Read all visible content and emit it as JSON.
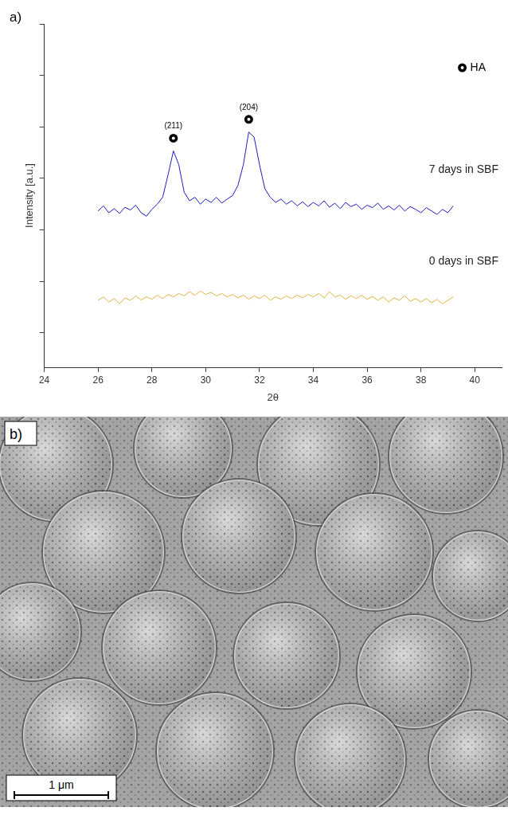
{
  "chart_data": {
    "type": "line",
    "panel_label": "a)",
    "x_label": "2θ",
    "y_label": "Intensity [a.u.]",
    "x": [
      26,
      26.2,
      26.4,
      26.6,
      26.8,
      27,
      27.2,
      27.4,
      27.6,
      27.8,
      28,
      28.2,
      28.4,
      28.6,
      28.8,
      29,
      29.2,
      29.4,
      29.6,
      29.8,
      30,
      30.2,
      30.4,
      30.6,
      30.8,
      31,
      31.2,
      31.4,
      31.6,
      31.8,
      32,
      32.2,
      32.4,
      32.6,
      32.8,
      33,
      33.2,
      33.4,
      33.6,
      33.8,
      34,
      34.2,
      34.4,
      34.6,
      34.8,
      35,
      35.2,
      35.4,
      35.6,
      35.8,
      36,
      36.2,
      36.4,
      36.6,
      36.8,
      37,
      37.2,
      37.4,
      37.6,
      37.8,
      38,
      38.2,
      38.4,
      38.6,
      38.8,
      39,
      39.2
    ],
    "series": [
      {
        "name": "7 days in SBF",
        "color": "#1c1cc8",
        "values": [
          4.55,
          4.7,
          4.5,
          4.62,
          4.48,
          4.66,
          4.58,
          4.72,
          4.5,
          4.4,
          4.6,
          4.75,
          4.95,
          5.6,
          6.3,
          5.9,
          5.1,
          4.85,
          4.95,
          4.75,
          4.9,
          4.8,
          4.95,
          4.78,
          4.9,
          5.0,
          5.3,
          5.9,
          6.85,
          6.7,
          5.9,
          5.2,
          4.95,
          4.8,
          4.9,
          4.75,
          4.85,
          4.7,
          4.82,
          4.68,
          4.8,
          4.7,
          4.85,
          4.66,
          4.78,
          4.62,
          4.8,
          4.68,
          4.75,
          4.6,
          4.72,
          4.65,
          4.78,
          4.6,
          4.7,
          4.58,
          4.72,
          4.55,
          4.68,
          4.6,
          4.5,
          4.65,
          4.55,
          4.45,
          4.6,
          4.5,
          4.7
        ],
        "peaks": [
          {
            "label": "(211)",
            "x": 28.8
          },
          {
            "label": "(204)",
            "x": 31.6
          }
        ]
      },
      {
        "name": "0 days in SBF",
        "color": "#e3b343",
        "values": [
          1.95,
          2.05,
          1.9,
          2.0,
          1.85,
          2.02,
          1.95,
          2.08,
          1.96,
          2.05,
          1.98,
          2.1,
          2.0,
          2.12,
          2.05,
          2.15,
          2.08,
          2.2,
          2.1,
          2.22,
          2.12,
          2.18,
          2.08,
          2.15,
          2.05,
          2.12,
          2.02,
          2.1,
          1.98,
          2.08,
          2.0,
          2.1,
          1.95,
          2.05,
          1.98,
          2.08,
          2.0,
          2.1,
          2.02,
          2.12,
          2.05,
          2.15,
          2.02,
          2.2,
          2.05,
          2.1,
          1.98,
          2.08,
          2.0,
          2.1,
          1.98,
          2.06,
          1.95,
          2.05,
          1.9,
          2.02,
          1.95,
          2.08,
          1.92,
          2.0,
          1.9,
          2.0,
          1.88,
          1.98,
          1.85,
          1.95,
          2.05
        ]
      }
    ],
    "marker": "circle",
    "marker_key": "HA",
    "xlim": [
      24,
      41
    ],
    "xticks": [
      24,
      26,
      28,
      30,
      32,
      34,
      36,
      38,
      40
    ],
    "ylim": [
      0,
      10
    ],
    "yticks": [
      1,
      2.5,
      4,
      5.5,
      7,
      8.5,
      10
    ],
    "grid": false,
    "tick_labels": "x"
  },
  "image_panel": {
    "label": "b)",
    "scale_bar": "1 μm"
  }
}
